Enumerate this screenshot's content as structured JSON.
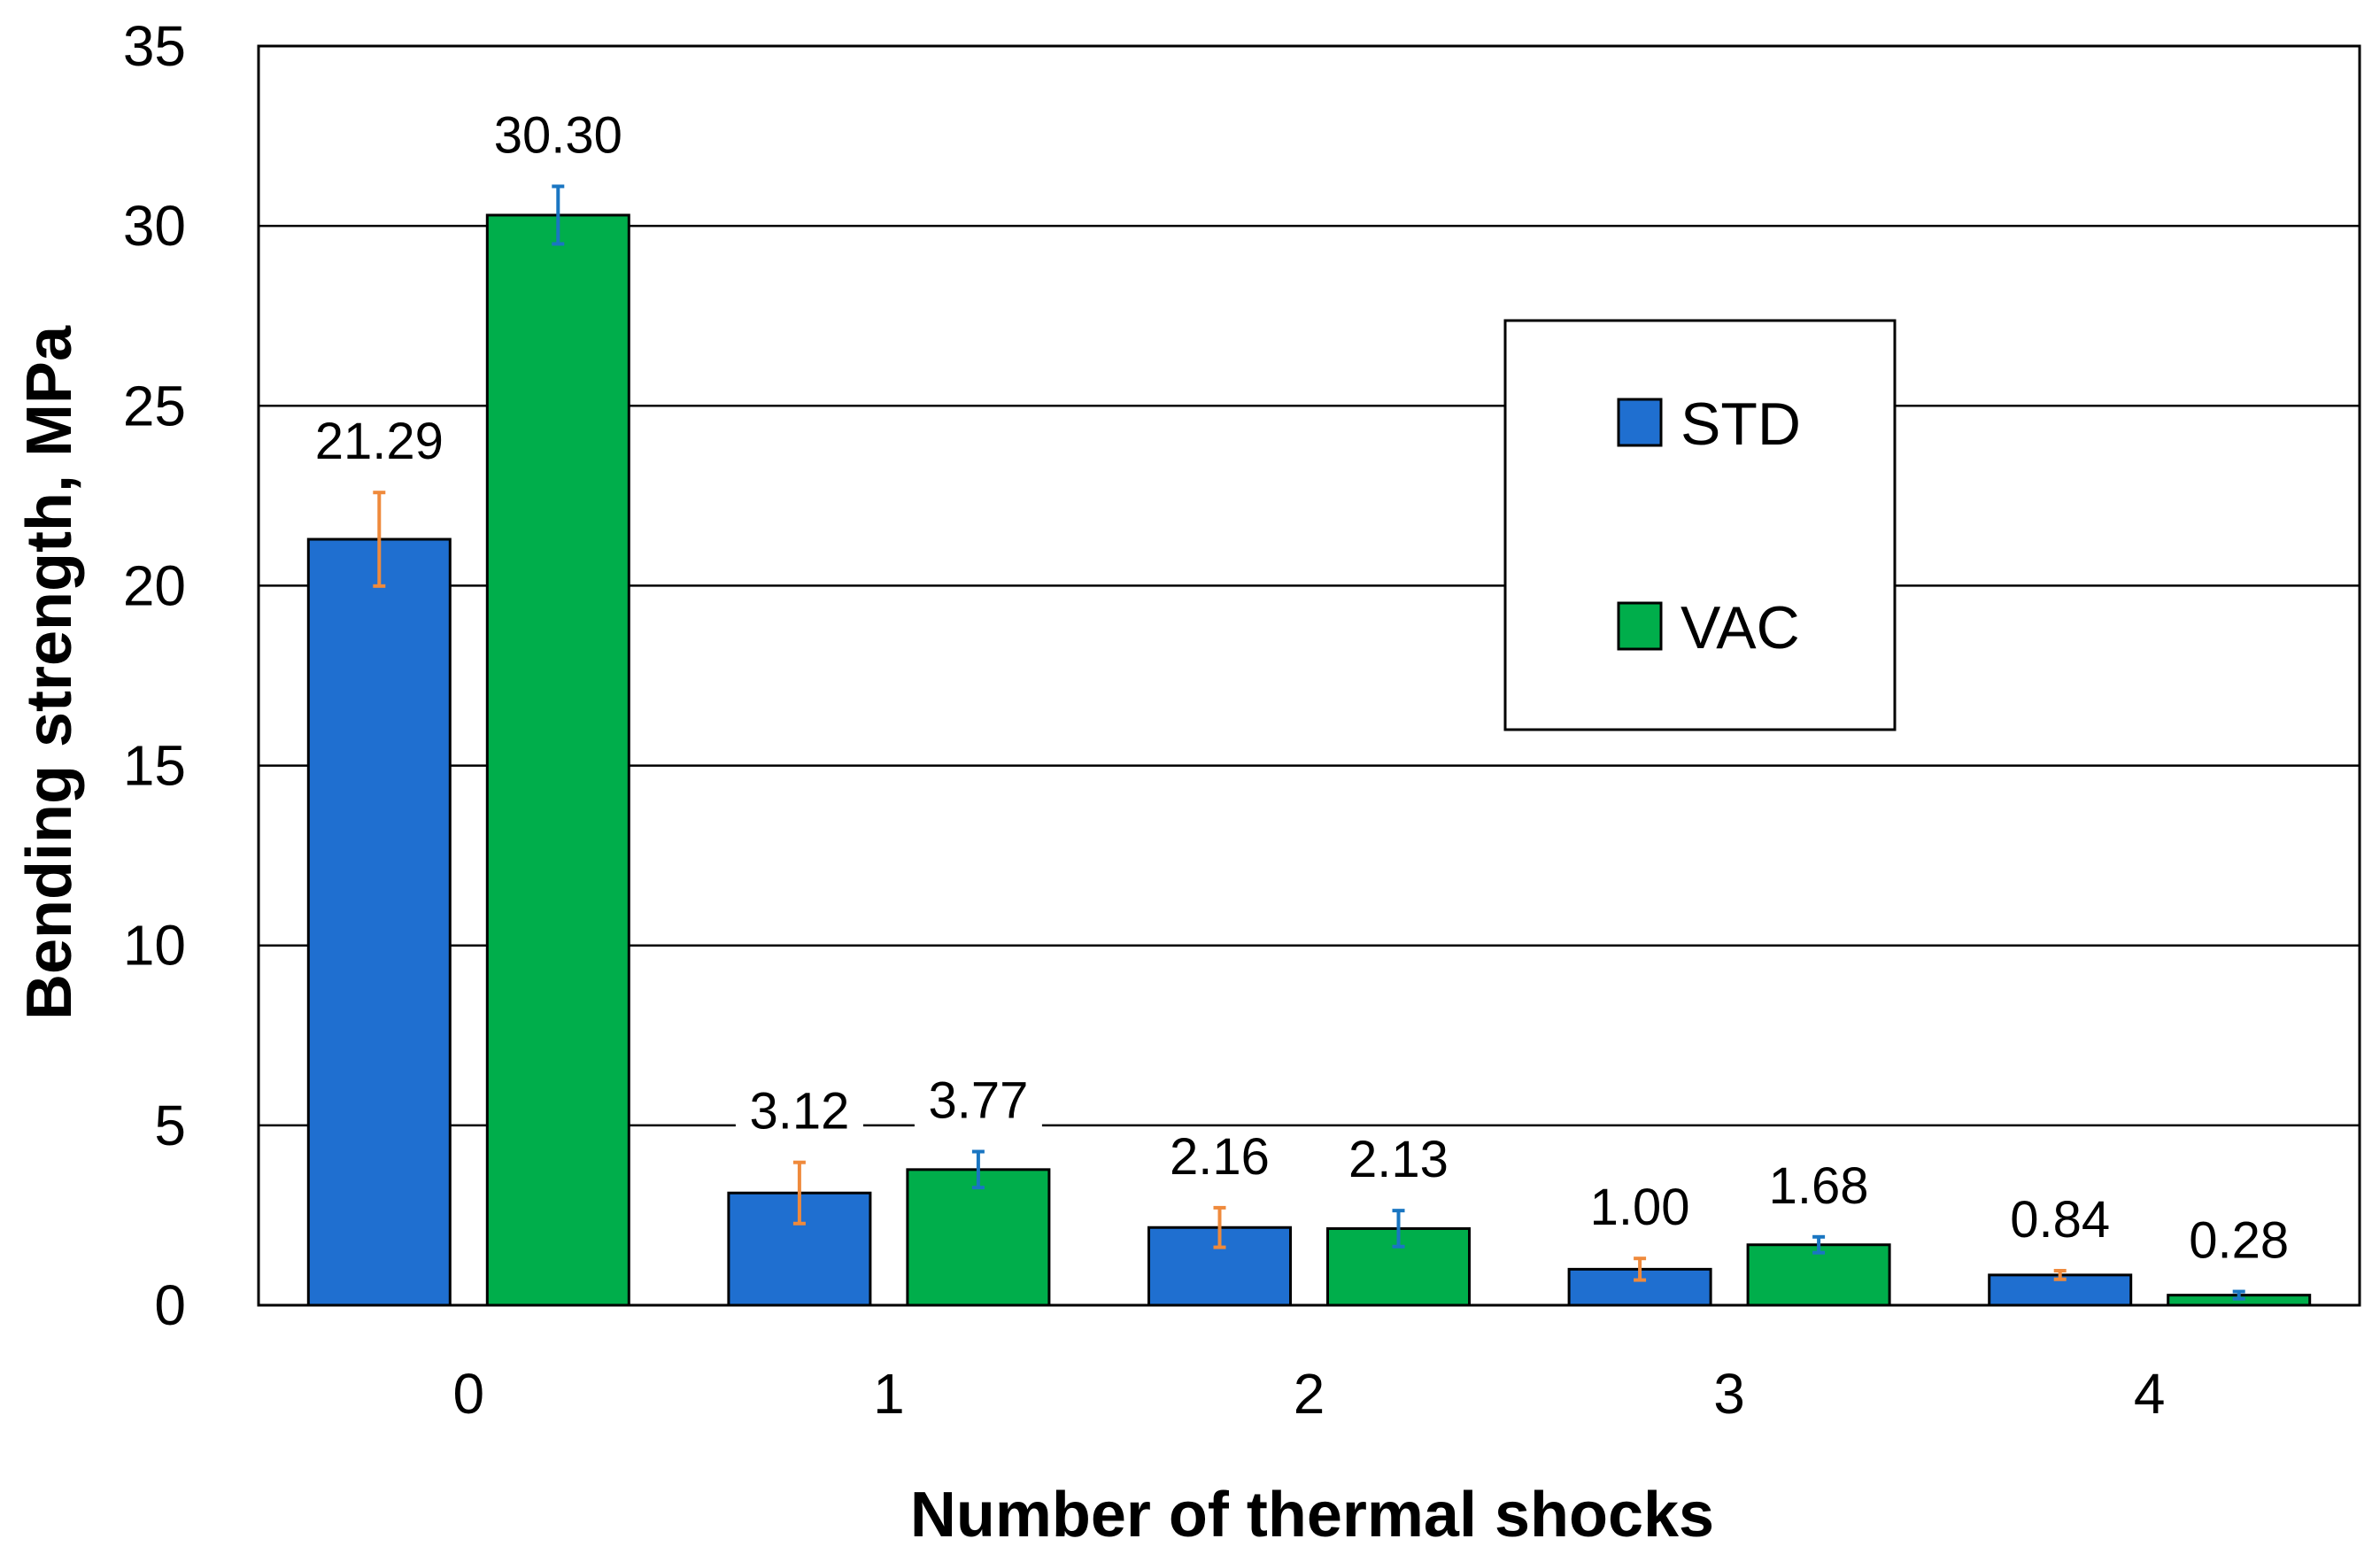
{
  "chart_data": {
    "type": "bar",
    "title": "",
    "xlabel": "Number of thermal shocks",
    "ylabel": "Bending strength, MPa",
    "categories": [
      "0",
      "1",
      "2",
      "3",
      "4"
    ],
    "ylim": [
      0,
      35
    ],
    "yticks": [
      0,
      5,
      10,
      15,
      20,
      25,
      30,
      35
    ],
    "grid": true,
    "legend_position": "upper-right-center",
    "series": [
      {
        "name": "STD",
        "color": "#1f6fd0",
        "error_color": "#ef8a3c",
        "values": [
          21.29,
          3.12,
          2.16,
          1.0,
          0.84
        ],
        "labels": [
          "21.29",
          "3.12",
          "2.16",
          "1.00",
          "0.84"
        ],
        "errors": [
          1.3,
          0.85,
          0.55,
          0.3,
          0.12
        ]
      },
      {
        "name": "VAC",
        "color": "#00ae4b",
        "error_color": "#1a76c2",
        "values": [
          30.3,
          3.77,
          2.13,
          1.68,
          0.28
        ],
        "labels": [
          "30.30",
          "3.77",
          "2.13",
          "1.68",
          "0.28"
        ],
        "errors": [
          0.8,
          0.5,
          0.5,
          0.22,
          0.1
        ]
      }
    ]
  }
}
